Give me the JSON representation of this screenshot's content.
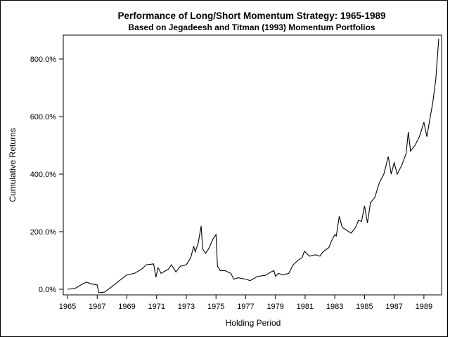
{
  "chart_data": {
    "type": "line",
    "title": "Performance of Long/Short Momentum Strategy: 1965-1989",
    "subtitle": "Based on Jegadeesh and Titman (1993) Momentum Portfolios",
    "xlabel": "Holding Period",
    "ylabel": "Cumulative Returns",
    "xlim": [
      1965,
      1990
    ],
    "ylim": [
      0,
      800
    ],
    "x_ticks": [
      "1965",
      "1967",
      "1969",
      "1971",
      "1973",
      "1975",
      "1977",
      "1979",
      "1981",
      "1983",
      "1985",
      "1987",
      "1989"
    ],
    "y_ticks": [
      "0.0%",
      "200.0%",
      "400.0%",
      "600.0%",
      "800.0%"
    ],
    "grid": false,
    "legend": "none",
    "line_color": "#000000",
    "x": [
      1965.0,
      1965.5,
      1966.0,
      1966.3,
      1966.5,
      1967.0,
      1967.1,
      1967.5,
      1968.0,
      1968.5,
      1969.0,
      1969.5,
      1970.0,
      1970.3,
      1970.8,
      1970.95,
      1971.1,
      1971.3,
      1971.8,
      1972.0,
      1972.3,
      1972.6,
      1973.0,
      1973.3,
      1973.5,
      1973.6,
      1973.8,
      1974.0,
      1974.1,
      1974.3,
      1974.5,
      1974.8,
      1975.0,
      1975.1,
      1975.3,
      1975.6,
      1976.0,
      1976.2,
      1976.5,
      1977.0,
      1977.3,
      1977.8,
      1978.3,
      1978.7,
      1978.9,
      1979.0,
      1979.2,
      1979.5,
      1979.9,
      1980.2,
      1980.5,
      1980.8,
      1980.95,
      1981.3,
      1981.7,
      1982.0,
      1982.2,
      1982.6,
      1982.8,
      1983.0,
      1983.1,
      1983.3,
      1983.5,
      1983.8,
      1984.1,
      1984.4,
      1984.6,
      1984.8,
      1985.0,
      1985.2,
      1985.4,
      1985.7,
      1986.0,
      1986.3,
      1986.6,
      1986.8,
      1987.0,
      1987.2,
      1987.5,
      1987.8,
      1987.95,
      1988.1,
      1988.4,
      1988.7,
      1989.0,
      1989.2,
      1989.4,
      1989.6,
      1989.8,
      1990.0
    ],
    "y": [
      0,
      3,
      18,
      25,
      20,
      15,
      -12,
      -10,
      10,
      30,
      50,
      55,
      70,
      85,
      88,
      42,
      75,
      55,
      70,
      85,
      60,
      80,
      85,
      110,
      150,
      130,
      160,
      220,
      140,
      125,
      140,
      175,
      190,
      80,
      65,
      65,
      55,
      35,
      40,
      35,
      30,
      45,
      48,
      60,
      65,
      45,
      55,
      50,
      55,
      85,
      100,
      110,
      132,
      115,
      120,
      115,
      130,
      145,
      170,
      190,
      185,
      254,
      215,
      205,
      195,
      215,
      240,
      235,
      290,
      230,
      300,
      320,
      370,
      400,
      461,
      400,
      440,
      400,
      430,
      470,
      546,
      480,
      500,
      530,
      580,
      530,
      590,
      650,
      730,
      871
    ]
  }
}
